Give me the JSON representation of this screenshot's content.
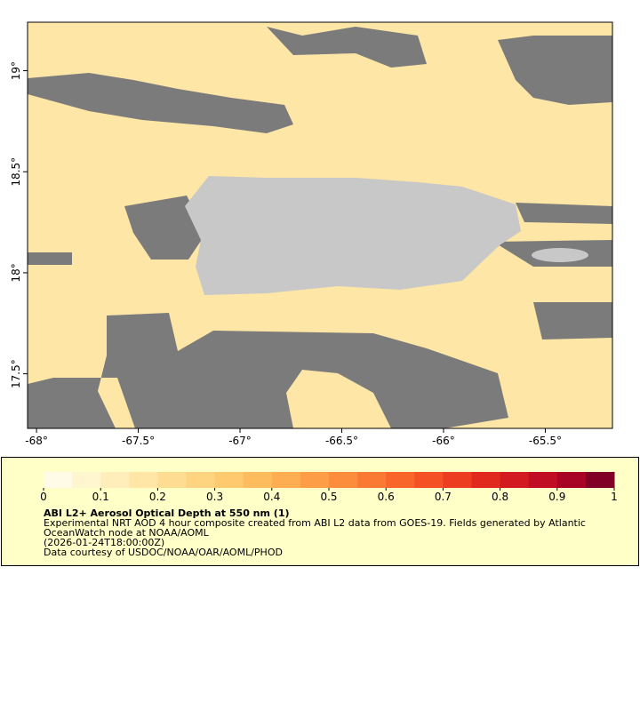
{
  "map": {
    "xlim": [
      -68.044,
      -65.17
    ],
    "ylim": [
      17.23,
      19.24
    ],
    "xticks": [
      {
        "value": -68,
        "label": "-68°"
      },
      {
        "value": -67.5,
        "label": "-67.5°"
      },
      {
        "value": -67,
        "label": "-67°"
      },
      {
        "value": -66.5,
        "label": "-66.5°"
      },
      {
        "value": -66,
        "label": "-66°"
      },
      {
        "value": -65.5,
        "label": "-65.5°"
      }
    ],
    "yticks": [
      {
        "value": 17.5,
        "label": "17.5°"
      },
      {
        "value": 18,
        "label": "18°"
      },
      {
        "value": 18.5,
        "label": "18.5°"
      },
      {
        "value": 19,
        "label": "19°"
      }
    ],
    "colorbar": {
      "clim": [
        0,
        1
      ],
      "ticks": [
        0,
        0.1,
        0.2,
        0.3,
        0.4,
        0.5,
        0.6,
        0.7,
        0.8,
        0.9,
        1
      ],
      "colors": [
        "#fffbe6",
        "#fff5cf",
        "#ffeeba",
        "#ffe6a6",
        "#fedd92",
        "#fed480",
        "#fec96f",
        "#fdbd5f",
        "#fdae52",
        "#fd9e46",
        "#fc8d3c",
        "#fb7a33",
        "#f9662b",
        "#f45124",
        "#ec3d20",
        "#e12a1d",
        "#d31a20",
        "#c10d24",
        "#a80426",
        "#800026"
      ]
    },
    "title": "ABI L2+ Aerosol Optical Depth at 550 nm (1)",
    "description": "Experimental NRT AOD 4 hour composite created from ABI L2 data from GOES-19. Fields generated by Atlantic OceanWatch node at NOAA/AOML",
    "timestamp": "(2026-01-24T18:00:00Z)",
    "credit": "Data courtesy of USDOC/NOAA/OAR/AOML/PHOD"
  }
}
